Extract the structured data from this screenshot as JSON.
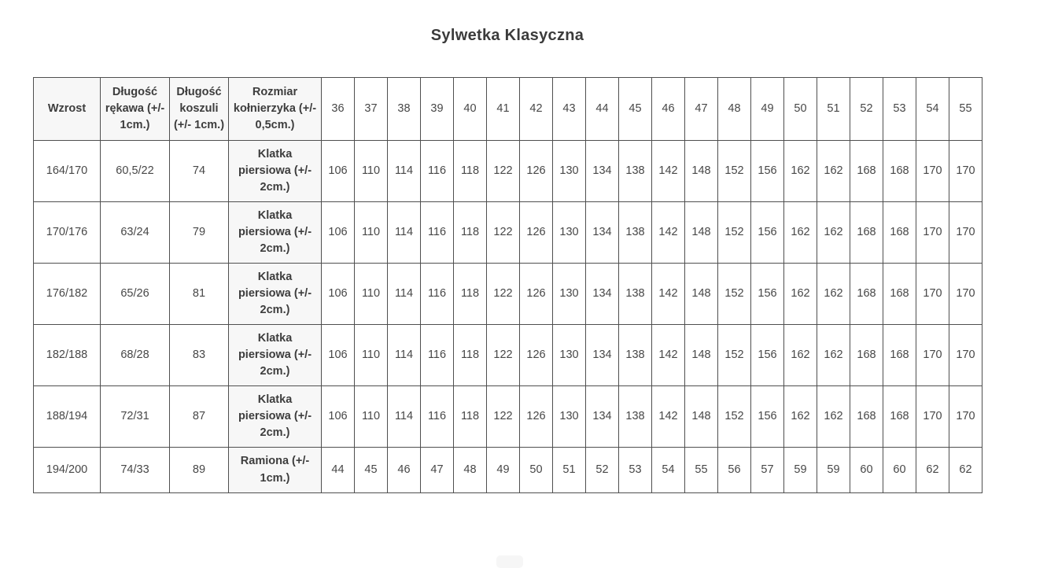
{
  "page": {
    "title": "Sylwetka Klasyczna"
  },
  "colors": {
    "border": "#4f4f4f",
    "header_background": "#f7f7f7",
    "cell_background": "#ffffff",
    "text": "#474747",
    "title_text": "#3b3b3b",
    "partial_button_background": "#f6f6f6"
  },
  "table": {
    "header": {
      "labels": [
        "Wzrost",
        "Długość rękawa (+/- 1cm.)",
        "Długość koszuli (+/- 1cm.)",
        "Rozmiar kołnierzyka (+/- 0,5cm.)"
      ],
      "sizes": [
        "36",
        "37",
        "38",
        "39",
        "40",
        "41",
        "42",
        "43",
        "44",
        "45",
        "46",
        "47",
        "48",
        "49",
        "50",
        "51",
        "52",
        "53",
        "54",
        "55"
      ]
    },
    "rows": [
      {
        "wzrost": "164/170",
        "rekaw": "60,5/22",
        "koszula": "74",
        "measure": "Klatka piersiowa (+/- 2cm.)",
        "values": [
          "106",
          "110",
          "114",
          "116",
          "118",
          "122",
          "126",
          "130",
          "134",
          "138",
          "142",
          "148",
          "152",
          "156",
          "162",
          "162",
          "168",
          "168",
          "170",
          "170"
        ]
      },
      {
        "wzrost": "170/176",
        "rekaw": "63/24",
        "koszula": "79",
        "measure": "Klatka piersiowa (+/- 2cm.)",
        "values": [
          "106",
          "110",
          "114",
          "116",
          "118",
          "122",
          "126",
          "130",
          "134",
          "138",
          "142",
          "148",
          "152",
          "156",
          "162",
          "162",
          "168",
          "168",
          "170",
          "170"
        ]
      },
      {
        "wzrost": "176/182",
        "rekaw": "65/26",
        "koszula": "81",
        "measure": "Klatka piersiowa (+/- 2cm.)",
        "values": [
          "106",
          "110",
          "114",
          "116",
          "118",
          "122",
          "126",
          "130",
          "134",
          "138",
          "142",
          "148",
          "152",
          "156",
          "162",
          "162",
          "168",
          "168",
          "170",
          "170"
        ]
      },
      {
        "wzrost": "182/188",
        "rekaw": "68/28",
        "koszula": "83",
        "measure": "Klatka piersiowa (+/- 2cm.)",
        "values": [
          "106",
          "110",
          "114",
          "116",
          "118",
          "122",
          "126",
          "130",
          "134",
          "138",
          "142",
          "148",
          "152",
          "156",
          "162",
          "162",
          "168",
          "168",
          "170",
          "170"
        ]
      },
      {
        "wzrost": "188/194",
        "rekaw": "72/31",
        "koszula": "87",
        "measure": "Klatka piersiowa (+/- 2cm.)",
        "values": [
          "106",
          "110",
          "114",
          "116",
          "118",
          "122",
          "126",
          "130",
          "134",
          "138",
          "142",
          "148",
          "152",
          "156",
          "162",
          "162",
          "168",
          "168",
          "170",
          "170"
        ]
      },
      {
        "wzrost": "194/200",
        "rekaw": "74/33",
        "koszula": "89",
        "measure": "Ramiona (+/- 1cm.)",
        "values": [
          "44",
          "45",
          "46",
          "47",
          "48",
          "49",
          "50",
          "51",
          "52",
          "53",
          "54",
          "55",
          "56",
          "57",
          "59",
          "59",
          "60",
          "60",
          "62",
          "62"
        ]
      }
    ]
  }
}
